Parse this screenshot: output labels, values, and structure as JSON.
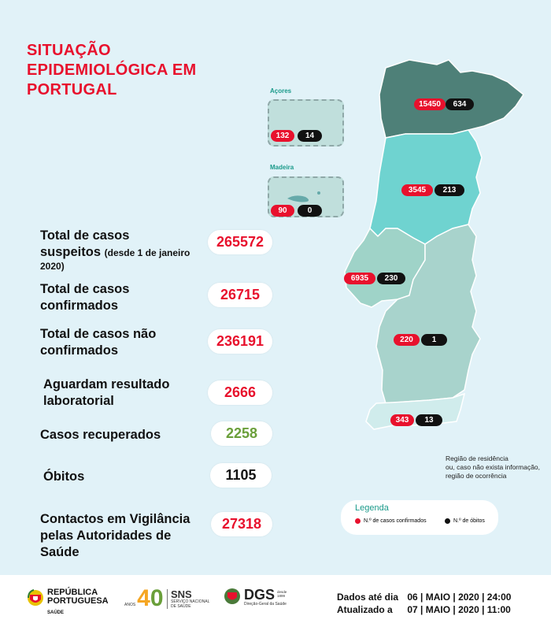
{
  "title": {
    "line1": "SITUAÇÃO",
    "line2": "EPIDEMIOLÓGICA EM",
    "line3": "PORTUGAL"
  },
  "stats": [
    {
      "label_line1": "Total de casos",
      "label_line2": "suspeitos",
      "note": "(desde 1 de janeiro",
      "note2": "2020)",
      "value": "265572",
      "color": "#e8112d"
    },
    {
      "label_line1": "Total de casos",
      "label_line2": "confirmados",
      "value": "26715",
      "color": "#e8112d"
    },
    {
      "label_line1": "Total de casos não",
      "label_line2": "confirmados",
      "value": "236191",
      "color": "#e8112d"
    },
    {
      "label_line1": "Aguardam resultado",
      "label_line2": "laboratorial",
      "value": "2666",
      "color": "#e8112d"
    },
    {
      "label_line1": "Casos recuperados",
      "value": "2258",
      "color": "#6a9f3a"
    },
    {
      "label_line1": "Óbitos",
      "value": "1105",
      "color": "#111111"
    },
    {
      "label_line1": "Contactos em Vigilância",
      "label_line2": "pelas Autoridades de",
      "label_line3": "Saúde",
      "value": "27318",
      "color": "#e8112d"
    }
  ],
  "islands": {
    "acores": {
      "label": "Açores",
      "cases": "132",
      "deaths": "14"
    },
    "madeira": {
      "label": "Madeira",
      "cases": "90",
      "deaths": "0"
    }
  },
  "regions": {
    "norte": {
      "cases": "15450",
      "deaths": "634",
      "color": "#4e8078"
    },
    "centro": {
      "cases": "3545",
      "deaths": "213",
      "color": "#6fd3d0"
    },
    "lisboa": {
      "cases": "6935",
      "deaths": "230",
      "color": "#9fd3c8"
    },
    "alentejo": {
      "cases": "220",
      "deaths": "1",
      "color": "#a8d3cc"
    },
    "algarve": {
      "cases": "343",
      "deaths": "13",
      "color": "#d0ecec"
    }
  },
  "note": {
    "line1": "Região de residência",
    "line2": "ou, caso não exista informação,",
    "line3": "região de ocorrência"
  },
  "legend": {
    "title": "Legenda",
    "confirmed": "N.º de casos confirmados",
    "deaths": "N.º de óbitos",
    "confirmed_color": "#e8112d",
    "deaths_color": "#111111"
  },
  "footer": {
    "rp_line1": "REPÚBLICA",
    "rp_line2": "PORTUGUESA",
    "rp_sub": "SAÚDE",
    "anos_label": "ANOS",
    "forty_4": "4",
    "forty_0": "0",
    "sns_big": "SNS",
    "sns_sub1": "SERVIÇO NACIONAL",
    "sns_sub2": "DE SAÚDE",
    "dgs_big": "DGS",
    "dgs_since1": "desde",
    "dgs_since2": "1899",
    "dgs_sub": "Direção-Geral da Saúde",
    "dates_label1": "Dados até dia",
    "dates_value1": "06 | MAIO | 2020 | 24:00",
    "dates_label2": "Atualizado a",
    "dates_value2": "07 | MAIO | 2020 | 11:00"
  }
}
